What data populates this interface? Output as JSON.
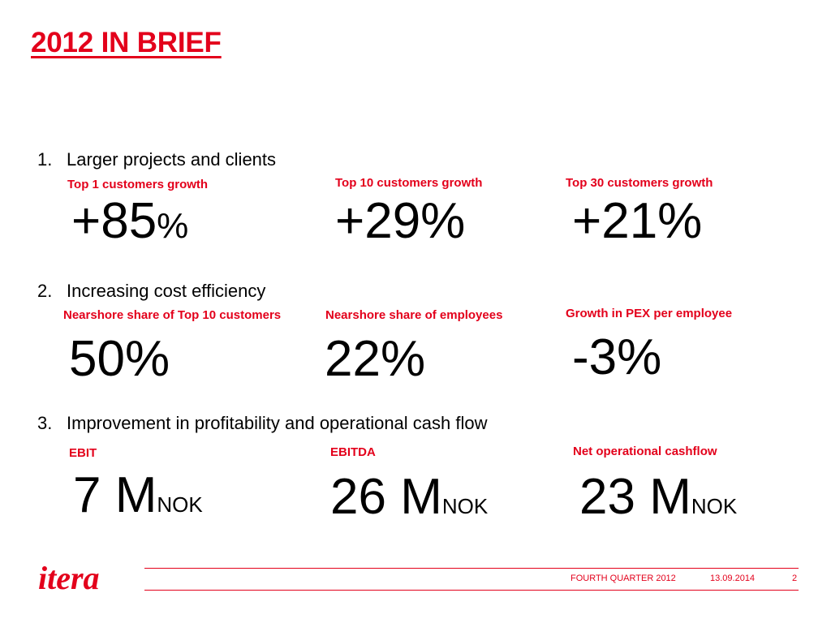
{
  "slide": {
    "title": "2012 IN BRIEF",
    "sections": [
      {
        "number": "1.",
        "heading": "Larger projects and clients",
        "metrics": [
          {
            "label": "Top 1 customers growth",
            "value": "+85",
            "unit": "%"
          },
          {
            "label": "Top 10 customers growth",
            "value": "+29%",
            "unit": ""
          },
          {
            "label": "Top 30 customers growth",
            "value": "+21%",
            "unit": ""
          }
        ]
      },
      {
        "number": "2.",
        "heading": "Increasing cost efficiency",
        "metrics": [
          {
            "label": "Nearshore share of Top 10 customers",
            "value": "50%",
            "unit": ""
          },
          {
            "label": "Nearshore share of employees",
            "value": "22%",
            "unit": ""
          },
          {
            "label": "Growth in PEX per employee",
            "value": "-3%",
            "unit": ""
          }
        ]
      },
      {
        "number": "3.",
        "heading": "Improvement in profitability and operational cash flow",
        "metrics": [
          {
            "label": "EBIT",
            "value": "7 M",
            "unit": "NOK"
          },
          {
            "label": "EBITDA",
            "value": "26 M",
            "unit": "NOK"
          },
          {
            "label": "Net operational cashflow",
            "value": "23 M",
            "unit": "NOK"
          }
        ]
      }
    ]
  },
  "footer": {
    "logo_text": "itera",
    "report": "FOURTH QUARTER 2012",
    "date": "13.09.2014",
    "page": "2"
  },
  "colors": {
    "accent": "#e3001b",
    "text": "#000000",
    "background": "#ffffff"
  }
}
